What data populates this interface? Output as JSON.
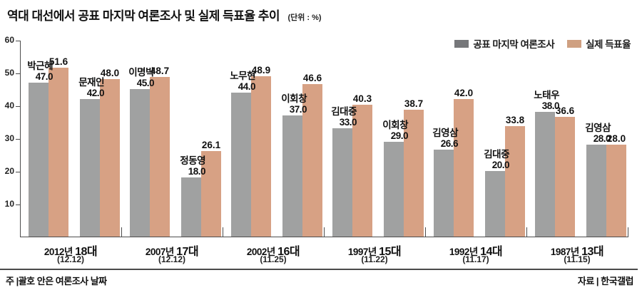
{
  "title": "역대 대선에서 공표 마지막 여론조사 및 실제 득표율 추이",
  "unit_label": "(단위 : %)",
  "legend": {
    "poll": "공표 마지막 여론조사",
    "actual": "실제 득표율"
  },
  "colors": {
    "poll_bar": "#a0a1a1",
    "actual_bar": "#d7a184",
    "legend_poll_swatch": "#76777a",
    "legend_actual_swatch": "#cfa081",
    "axis": "#4d4d4d"
  },
  "footer": {
    "note": "주 |괄호 안은 여론조사 날짜",
    "source": "자료 | 한국갤럽"
  },
  "chart_data": {
    "type": "bar",
    "title": "역대 대선에서 공표 마지막 여론조사 및 실제 득표율 추이",
    "unit": "%",
    "ylim": [
      0,
      60
    ],
    "yticks": [
      10,
      20,
      30,
      40,
      50,
      60
    ],
    "grid": false,
    "legend_position": "top-right",
    "series_names": [
      "공표 마지막 여론조사",
      "실제 득표율"
    ],
    "groups": [
      {
        "year": "2012년",
        "term": "18대",
        "date": "(12.12)",
        "candidates": [
          {
            "name": "박근혜",
            "poll": 47.0,
            "actual": 51.6
          },
          {
            "name": "문재인",
            "poll": 42.0,
            "actual": 48.0
          }
        ]
      },
      {
        "year": "2007년",
        "term": "17대",
        "date": "(12.12)",
        "candidates": [
          {
            "name": "이명박",
            "poll": 45.0,
            "actual": 48.7
          },
          {
            "name": "정동영",
            "poll": 18.0,
            "actual": 26.1
          }
        ]
      },
      {
        "year": "2002년",
        "term": "16대",
        "date": "(11.25)",
        "candidates": [
          {
            "name": "노무현",
            "poll": 44.0,
            "actual": 48.9
          },
          {
            "name": "이회창",
            "poll": 37.0,
            "actual": 46.6
          }
        ]
      },
      {
        "year": "1997년",
        "term": "15대",
        "date": "(11.22)",
        "candidates": [
          {
            "name": "김대중",
            "poll": 33.0,
            "actual": 40.3
          },
          {
            "name": "이회창",
            "poll": 29.0,
            "actual": 38.7
          }
        ]
      },
      {
        "year": "1992년",
        "term": "14대",
        "date": "(11.17)",
        "candidates": [
          {
            "name": "김영삼",
            "poll": 26.6,
            "actual": 42.0
          },
          {
            "name": "김대중",
            "poll": 20.0,
            "actual": 33.8
          }
        ]
      },
      {
        "year": "1987년",
        "term": "13대",
        "date": "(11.15)",
        "candidates": [
          {
            "name": "노태우",
            "poll": 38.0,
            "actual": 36.6
          },
          {
            "name": "김영삼",
            "poll": 28.0,
            "actual": 28.0
          }
        ]
      }
    ]
  }
}
